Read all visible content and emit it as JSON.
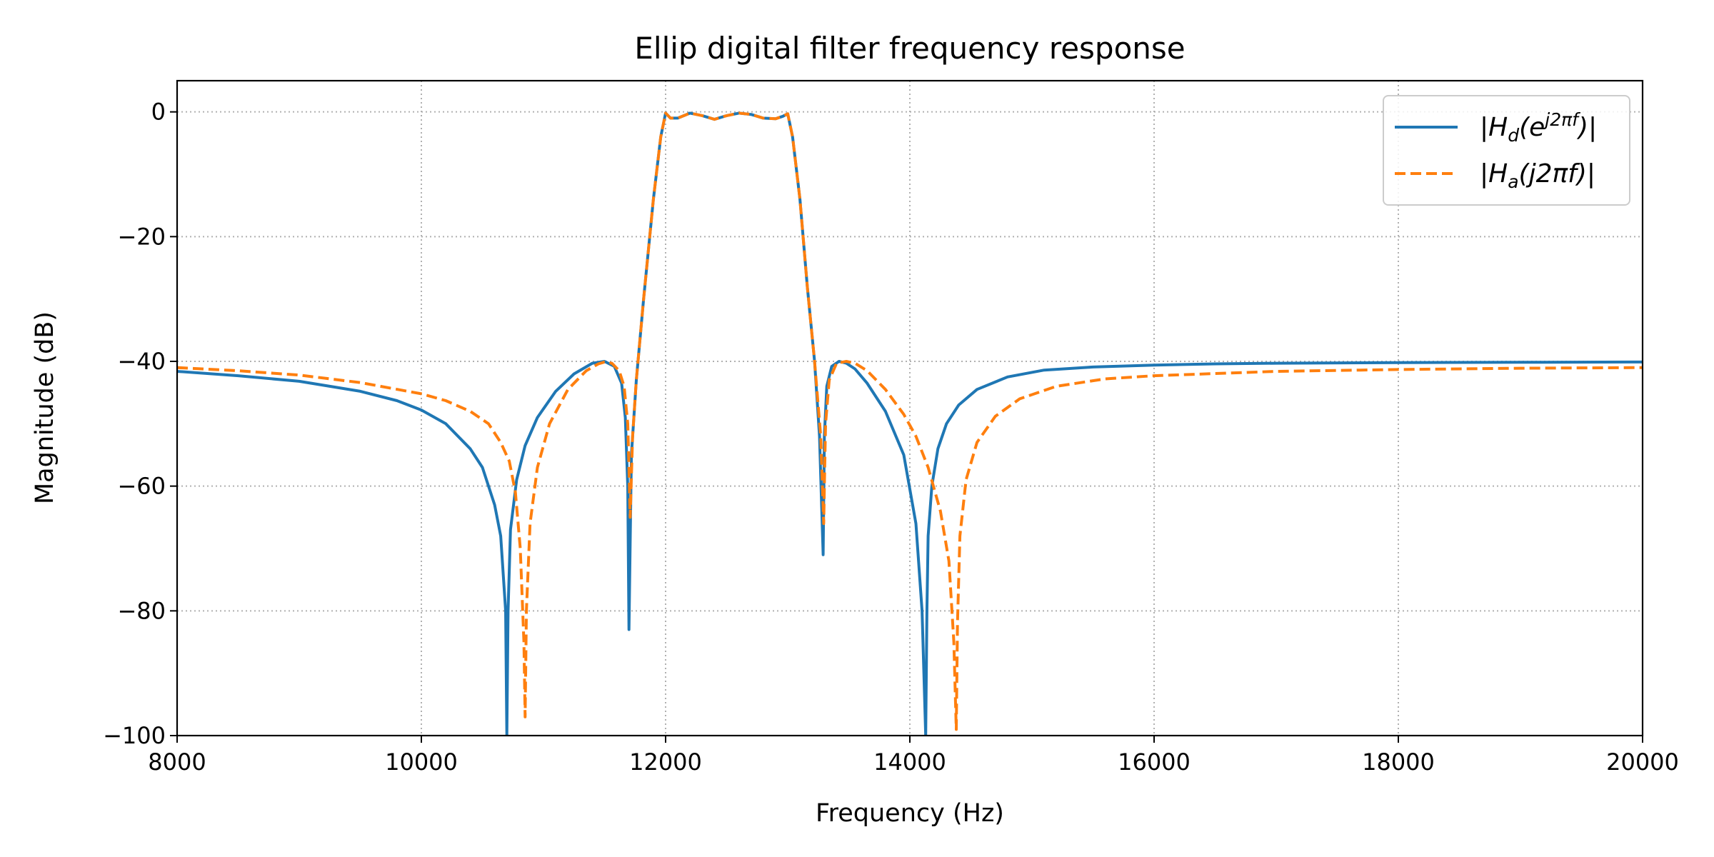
{
  "chart_data": {
    "type": "line",
    "title": "Ellip digital filter frequency response",
    "xlabel": "Frequency (Hz)",
    "ylabel": "Magnitude (dB)",
    "xlim": [
      8000,
      20000
    ],
    "ylim": [
      -100,
      5
    ],
    "xticks": [
      8000,
      10000,
      12000,
      14000,
      16000,
      18000,
      20000
    ],
    "xtick_labels": [
      "8000",
      "10000",
      "12000",
      "14000",
      "16000",
      "18000",
      "20000"
    ],
    "yticks": [
      0,
      -20,
      -40,
      -60,
      -80,
      -100
    ],
    "ytick_labels": [
      "0",
      "−20",
      "−40",
      "−60",
      "−80",
      "−100"
    ],
    "grid": true,
    "legend_position": "top-right",
    "series": [
      {
        "name": "|Hd(e^{j2πf})|",
        "legend_main": "|H",
        "legend_sub": "d",
        "legend_mid": "(e",
        "legend_sup": "j2πf",
        "legend_end": ")|",
        "color": "#1f77b4",
        "dash": "solid",
        "x": [
          8000,
          8500,
          9000,
          9500,
          9800,
          10000,
          10200,
          10400,
          10500,
          10600,
          10650,
          10690,
          10700,
          10710,
          10730,
          10780,
          10850,
          10950,
          11100,
          11250,
          11400,
          11500,
          11580,
          11640,
          11670,
          11690,
          11700,
          11720,
          11760,
          11820,
          11900,
          11960,
          12000,
          12040,
          12100,
          12200,
          12300,
          12400,
          12500,
          12600,
          12700,
          12800,
          12900,
          12960,
          13000,
          13040,
          13100,
          13160,
          13220,
          13260,
          13290,
          13300,
          13320,
          13360,
          13420,
          13480,
          13550,
          13650,
          13800,
          13950,
          14050,
          14100,
          14130,
          14140,
          14150,
          14180,
          14230,
          14300,
          14400,
          14550,
          14800,
          15100,
          15500,
          16000,
          16500,
          17000,
          18000,
          19000,
          20000
        ],
        "y": [
          -41.6,
          -42.3,
          -43.2,
          -44.8,
          -46.3,
          -47.8,
          -50.0,
          -54.0,
          -57.0,
          -63.0,
          -68.0,
          -80.0,
          -100.0,
          -80.0,
          -67.0,
          -59.0,
          -53.5,
          -49.0,
          -44.8,
          -42.0,
          -40.3,
          -40.0,
          -40.8,
          -43.5,
          -49.0,
          -60.0,
          -83.0,
          -55.0,
          -43.0,
          -30.0,
          -14.0,
          -4.0,
          -0.2,
          -1.0,
          -1.0,
          -0.2,
          -0.6,
          -1.2,
          -0.6,
          -0.2,
          -0.4,
          -1.0,
          -1.1,
          -0.7,
          -0.3,
          -4.0,
          -14.0,
          -28.0,
          -40.0,
          -52.0,
          -71.0,
          -52.0,
          -44.0,
          -40.8,
          -40.0,
          -40.3,
          -41.2,
          -43.5,
          -48.0,
          -55.0,
          -66.0,
          -80.0,
          -100.0,
          -80.0,
          -68.0,
          -60.0,
          -54.0,
          -50.0,
          -47.0,
          -44.5,
          -42.5,
          -41.4,
          -40.9,
          -40.6,
          -40.4,
          -40.3,
          -40.2,
          -40.15,
          -40.1
        ]
      },
      {
        "name": "|Ha(j2πf)|",
        "legend_main": "|H",
        "legend_sub": "a",
        "legend_mid": "(j2πf)|",
        "legend_sup": "",
        "legend_end": "",
        "color": "#ff7f0e",
        "dash": "dashed",
        "x": [
          8000,
          8500,
          9000,
          9500,
          10000,
          10200,
          10400,
          10550,
          10650,
          10720,
          10770,
          10810,
          10840,
          10850,
          10860,
          10890,
          10950,
          11050,
          11200,
          11350,
          11450,
          11500,
          11560,
          11620,
          11660,
          11690,
          11700,
          11710,
          11730,
          11760,
          11820,
          11900,
          11960,
          12000,
          12040,
          12100,
          12200,
          12300,
          12400,
          12500,
          12600,
          12700,
          12800,
          12900,
          12960,
          13000,
          13040,
          13100,
          13160,
          13220,
          13270,
          13295,
          13300,
          13310,
          13340,
          13400,
          13480,
          13550,
          13650,
          13800,
          13950,
          14050,
          14150,
          14250,
          14320,
          14360,
          14380,
          14390,
          14410,
          14460,
          14550,
          14700,
          14900,
          15200,
          15600,
          16000,
          17000,
          18000,
          19000,
          20000
        ],
        "y": [
          -41.0,
          -41.5,
          -42.2,
          -43.4,
          -45.2,
          -46.3,
          -48.0,
          -50.0,
          -53.0,
          -56.0,
          -61.0,
          -70.0,
          -85.0,
          -97.0,
          -80.0,
          -66.0,
          -57.0,
          -50.0,
          -44.5,
          -41.5,
          -40.4,
          -40.1,
          -40.3,
          -41.5,
          -44.0,
          -50.0,
          -57.0,
          -65.0,
          -52.0,
          -43.0,
          -30.0,
          -14.0,
          -4.0,
          -0.2,
          -1.0,
          -1.0,
          -0.2,
          -0.6,
          -1.2,
          -0.6,
          -0.2,
          -0.4,
          -1.0,
          -1.1,
          -0.7,
          -0.3,
          -4.0,
          -14.0,
          -28.0,
          -40.0,
          -52.0,
          -66.0,
          -60.0,
          -50.0,
          -43.0,
          -40.3,
          -40.0,
          -40.3,
          -41.5,
          -44.5,
          -48.5,
          -52.0,
          -57.0,
          -64.0,
          -72.0,
          -85.0,
          -99.0,
          -82.0,
          -68.0,
          -59.0,
          -53.0,
          -48.8,
          -46.0,
          -44.0,
          -42.8,
          -42.3,
          -41.6,
          -41.3,
          -41.1,
          -41.0
        ]
      }
    ]
  }
}
